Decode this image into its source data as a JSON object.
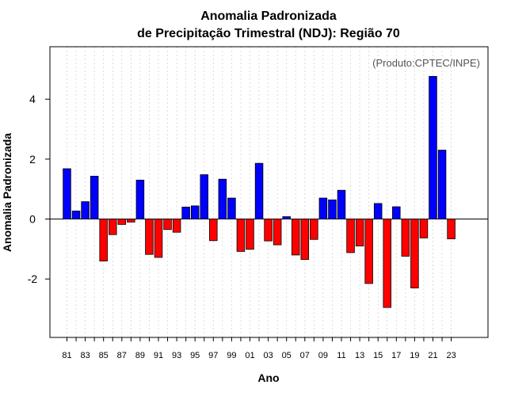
{
  "chart_data": {
    "type": "bar",
    "title": [
      "Anomalia Padronizada",
      "de Precipitação Trimestral (NDJ): Região 70"
    ],
    "xlabel": "Ano",
    "ylabel": "Anomalia Padronizada",
    "annotation": "(Produto:CPTEC/INPE)",
    "categories": [
      "81",
      "82",
      "83",
      "84",
      "85",
      "86",
      "87",
      "88",
      "89",
      "90",
      "91",
      "92",
      "93",
      "94",
      "95",
      "96",
      "97",
      "98",
      "99",
      "00",
      "01",
      "02",
      "03",
      "04",
      "05",
      "06",
      "07",
      "08",
      "09",
      "10",
      "11",
      "12",
      "13",
      "14",
      "15",
      "16",
      "17",
      "18",
      "19",
      "20",
      "21",
      "22",
      "23"
    ],
    "xtick_labels": [
      "81",
      "83",
      "85",
      "87",
      "89",
      "91",
      "93",
      "95",
      "97",
      "99",
      "01",
      "03",
      "05",
      "07",
      "09",
      "11",
      "13",
      "15",
      "17",
      "19",
      "21",
      "23"
    ],
    "values": [
      1.68,
      0.27,
      0.58,
      1.43,
      -1.4,
      -0.52,
      -0.18,
      -0.1,
      1.3,
      -1.18,
      -1.28,
      -0.35,
      -0.44,
      0.4,
      0.44,
      1.48,
      -0.72,
      1.33,
      0.7,
      -1.08,
      -1.01,
      1.86,
      -0.73,
      -0.86,
      0.08,
      -1.2,
      -1.35,
      -0.68,
      0.7,
      0.64,
      0.96,
      -1.12,
      -0.9,
      -2.15,
      0.52,
      -2.95,
      0.41,
      -1.24,
      -2.3,
      -0.63,
      4.76,
      2.3,
      -0.66
    ],
    "yticks": [
      -2,
      0,
      2,
      4
    ],
    "ylim": [
      -3.95,
      5.75
    ],
    "colors": {
      "positive": "#0000ff",
      "negative": "#ff0000",
      "zero_line": "#000000",
      "grid": "#d3d3d3"
    }
  }
}
